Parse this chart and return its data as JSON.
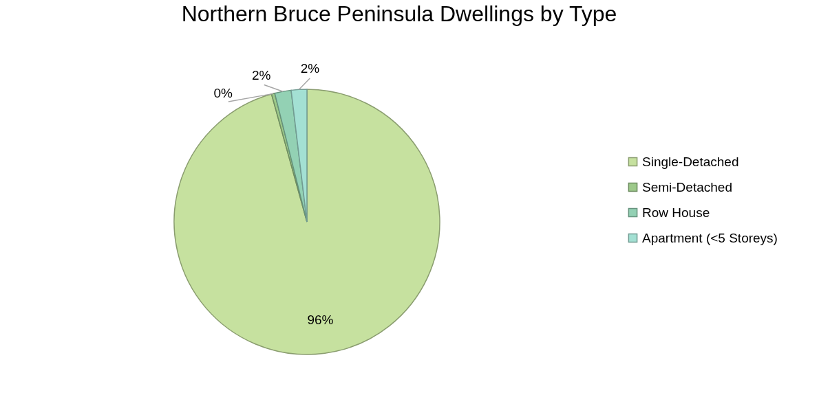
{
  "chart_data": {
    "type": "pie",
    "title": "Northern Bruce Peninsula Dwellings by Type",
    "categories": [
      "Single-Detached",
      "Semi-Detached",
      "Row House",
      "Apartment (<5 Storeys)"
    ],
    "values": [
      95.7,
      0.4,
      2.0,
      1.9
    ],
    "value_labels": [
      "96%",
      "0%",
      "2%",
      "2%"
    ],
    "colors": [
      "#c6e19f",
      "#9dc98a",
      "#93d1b4",
      "#a3e0d3"
    ],
    "legend": "right"
  }
}
